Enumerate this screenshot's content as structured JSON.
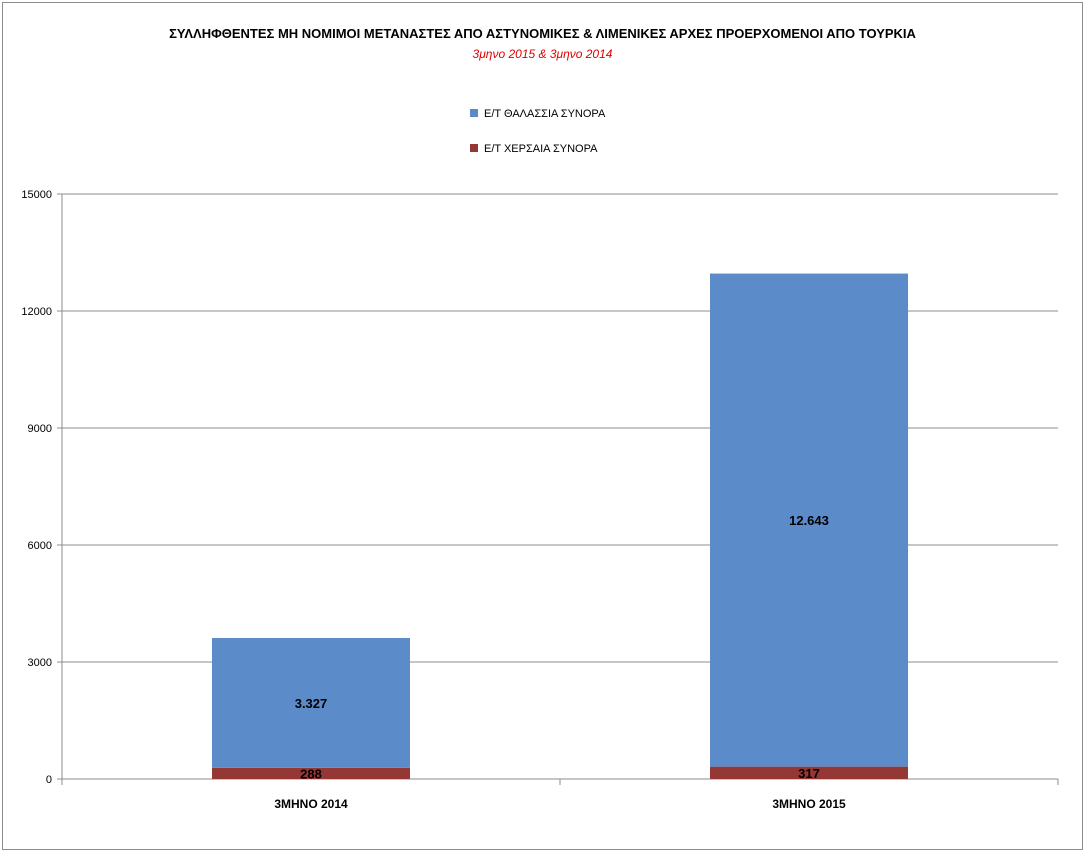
{
  "chart_data": {
    "type": "bar",
    "stacked": true,
    "title": "ΣΥΛΛΗΦΘΕΝΤΕΣ ΜΗ ΝΟΜΙΜΟΙ ΜΕΤΑΝΑΣΤΕΣ ΑΠΟ ΑΣΤΥΝΟΜΙΚΕΣ & ΛΙΜΕΝΙΚΕΣ ΑΡΧΕΣ  ΠΡΟΕΡΧΟΜΕΝΟΙ ΑΠΟ ΤΟΥΡΚΙΑ",
    "subtitle": "3μηνο 2015   &  3μηνο 2014",
    "categories": [
      "3ΜΗΝΟ 2014",
      "3ΜΗΝΟ 2015"
    ],
    "series": [
      {
        "name": "Ε/Τ ΧΕΡΣΑΙΑ ΣΥΝΟΡΑ",
        "values": [
          288,
          317
        ],
        "labels": [
          "288",
          "317"
        ],
        "color": "#953735"
      },
      {
        "name": "Ε/Τ ΘΑΛΑΣΣΙΑ ΣΥΝΟΡΑ",
        "values": [
          3327,
          12643
        ],
        "labels": [
          "3.327",
          "12.643"
        ],
        "color": "#5b8bc8"
      }
    ],
    "legend_order": [
      "Ε/Τ ΘΑΛΑΣΣΙΑ ΣΥΝΟΡΑ",
      "Ε/Τ ΧΕΡΣΑΙΑ ΣΥΝΟΡΑ"
    ],
    "legend_position": "top",
    "yticks": [
      "0",
      "3000",
      "6000",
      "9000",
      "12000",
      "15000"
    ],
    "ylim": [
      0,
      15000
    ],
    "grid": true,
    "xlabel": "",
    "ylabel": ""
  }
}
